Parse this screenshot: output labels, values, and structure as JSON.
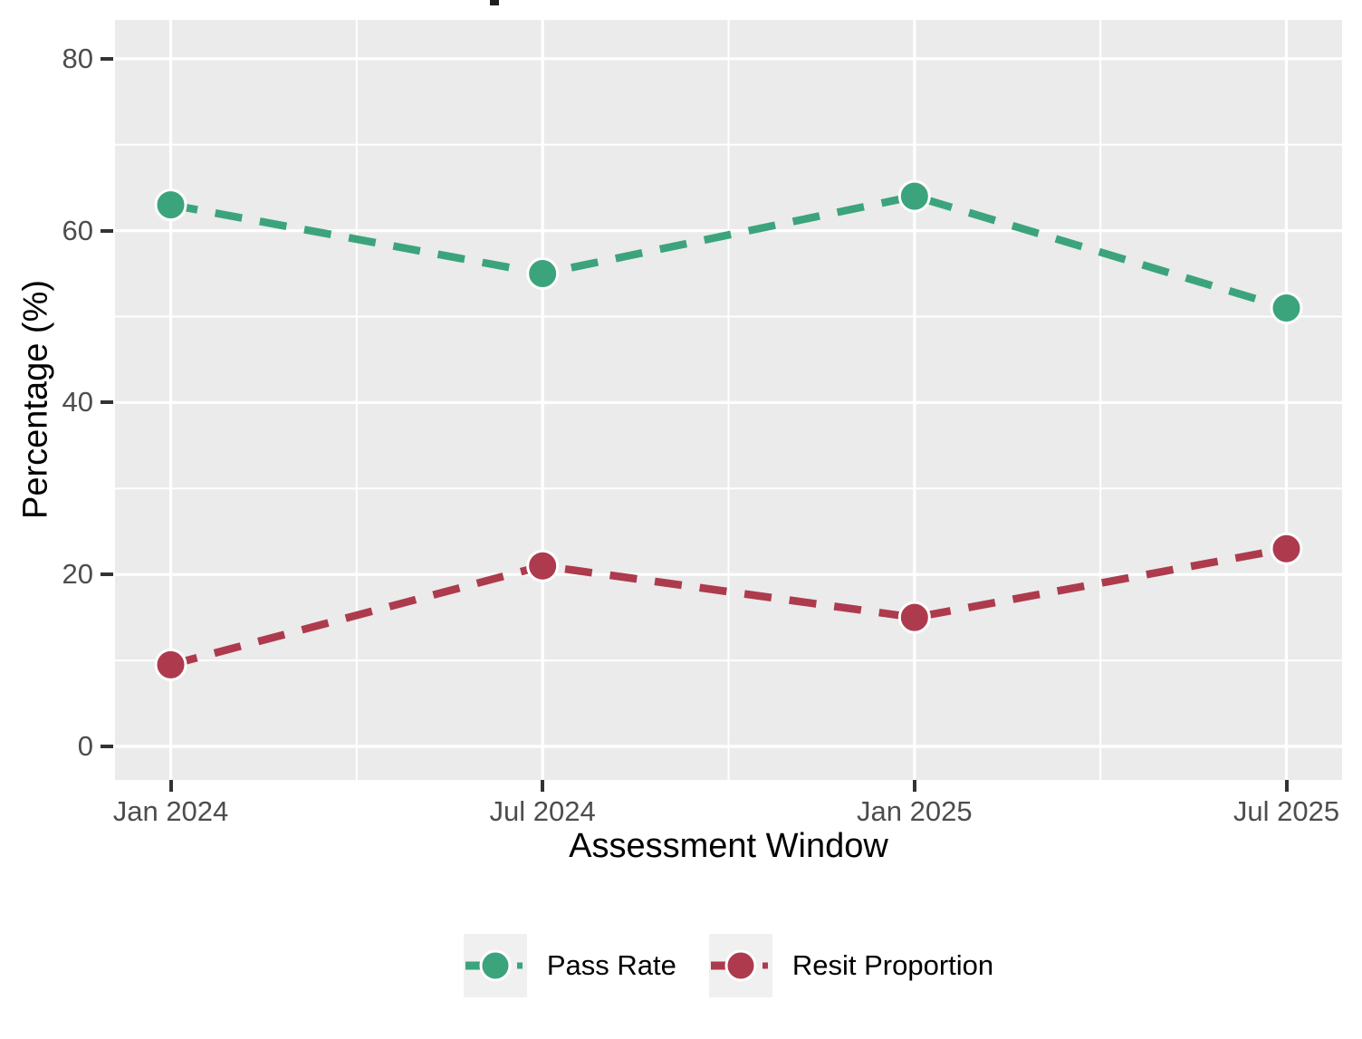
{
  "chart_data": {
    "type": "line",
    "categories": [
      "Jan 2024",
      "Jul 2024",
      "Jan 2025",
      "Jul 2025"
    ],
    "series": [
      {
        "name": "Pass Rate",
        "color": "#3CA47C",
        "values": [
          63,
          55,
          64,
          51
        ]
      },
      {
        "name": "Resit Proportion",
        "color": "#AD3B4D",
        "values": [
          9.5,
          21,
          15,
          23
        ]
      }
    ],
    "xlabel": "Assessment Window",
    "ylabel": "Percentage (%)",
    "ylim": [
      0,
      80
    ],
    "yticks": [
      0,
      20,
      40,
      60,
      80
    ],
    "minor_yticks": [
      10,
      30,
      50,
      70
    ],
    "grid": true,
    "line_style": "dashed",
    "marker": "circle",
    "legend_position": "bottom"
  },
  "style": {
    "background": "#FFFFFF",
    "panel_bg": "#EBEBEB",
    "grid_color": "#FFFFFF",
    "axis_text_color": "#4D4D4D",
    "axis_title_color": "#000000",
    "tick_mark_color": "#333333",
    "legend_key_bg": "#F0F0F0",
    "point_outline": "#FFFFFF"
  }
}
